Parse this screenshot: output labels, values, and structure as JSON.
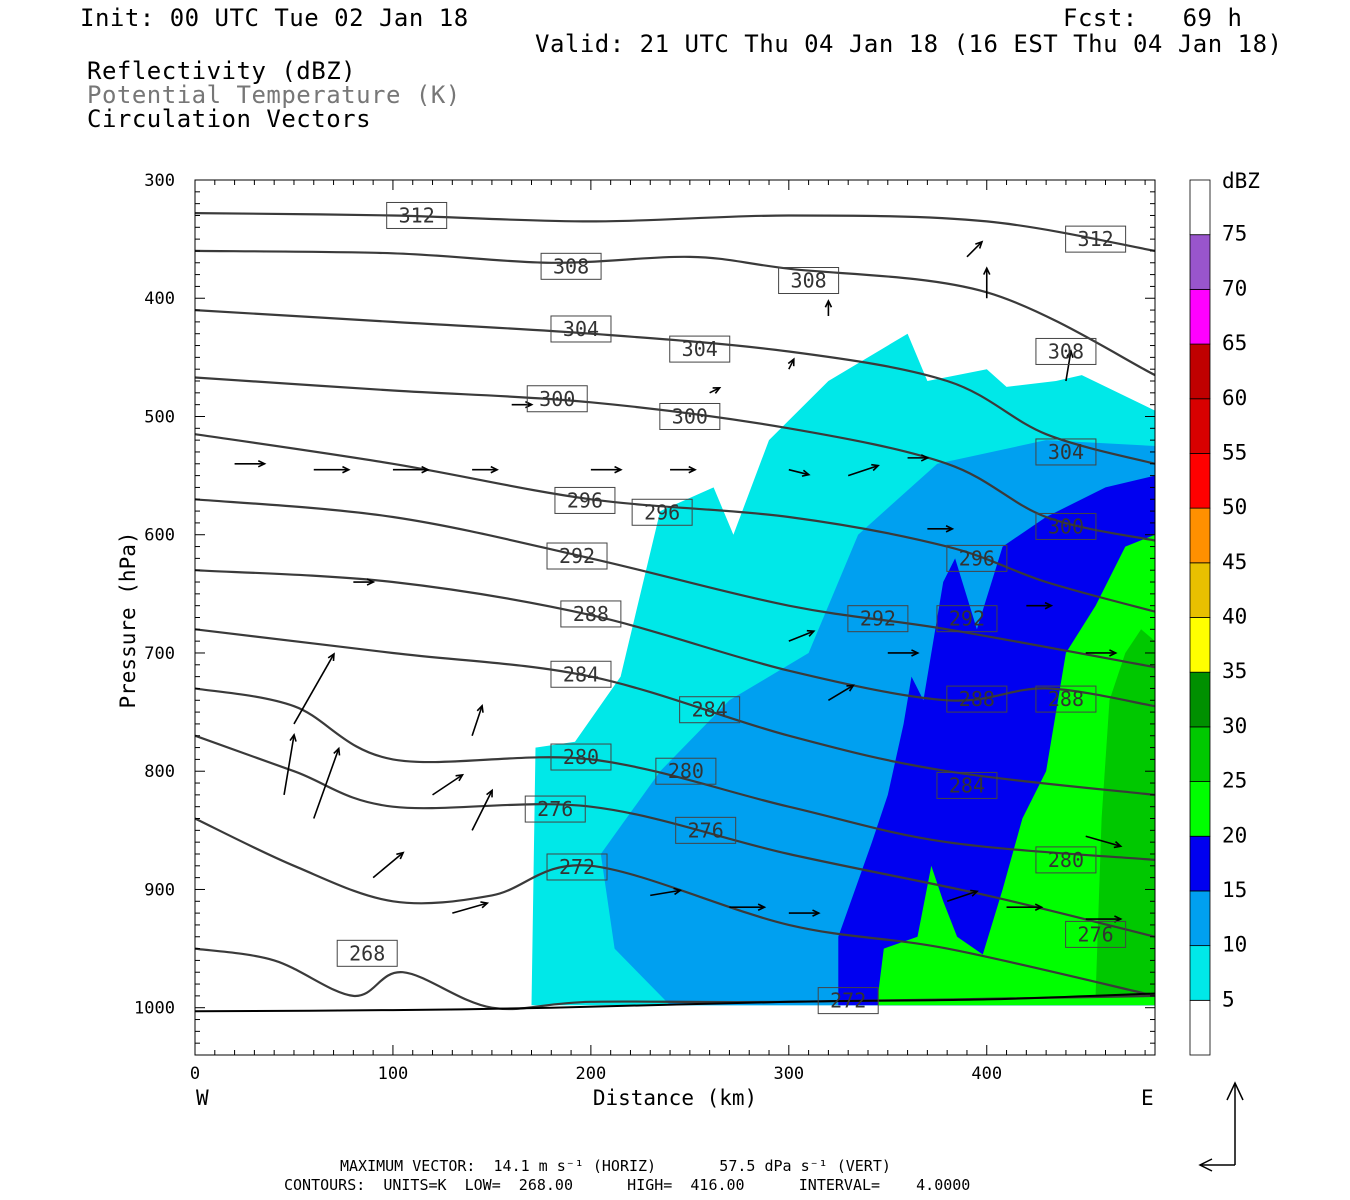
{
  "header": {
    "init": "Init: 00 UTC Tue 02 Jan 18",
    "fcst": "Fcst:   69 h",
    "valid": "Valid: 21 UTC Thu 04 Jan 18 (16 EST Thu 04 Jan 18)",
    "legend": [
      {
        "text": "Reflectivity (dBZ)",
        "color": "#000000"
      },
      {
        "text": "Potential Temperature (K)",
        "color": "#777777"
      },
      {
        "text": "Circulation Vectors",
        "color": "#000000"
      }
    ]
  },
  "footer": {
    "line1": "MAXIMUM VECTOR:  14.1 m s⁻¹ (HORIZ)       57.5 dPa s⁻¹ (VERT)",
    "line2": "CONTOURS:  UNITS=K  LOW=  268.00      HIGH=  416.00      INTERVAL=    4.0000"
  },
  "chart_data": {
    "type": "cross-section (filled contour + contour lines + vectors)",
    "xlabel": "Distance (km)",
    "ylabel": "Pressure (hPa)",
    "xlim": [
      0,
      485
    ],
    "ylim": [
      1040,
      300
    ],
    "x_ticks": [
      "0",
      "100",
      "200",
      "300",
      "400"
    ],
    "y_ticks": [
      "300",
      "400",
      "500",
      "600",
      "700",
      "800",
      "900",
      "1000"
    ],
    "x_end_labels": {
      "left": "W",
      "right": "E"
    },
    "colorbar": {
      "title": "dBZ",
      "levels": [
        "5",
        "10",
        "15",
        "20",
        "25",
        "30",
        "35",
        "40",
        "45",
        "50",
        "55",
        "60",
        "65",
        "70",
        "75"
      ],
      "colors": [
        "#00e8e8",
        "#00a0f0",
        "#0000f0",
        "#00ff00",
        "#00c800",
        "#009000",
        "#ffff00",
        "#e8c000",
        "#ff9000",
        "#ff0000",
        "#d80000",
        "#c00000",
        "#ff00ff",
        "#9955cc",
        "#ffffff"
      ]
    },
    "reflectivity_regions": [
      {
        "dbz": 5,
        "outline": [
          [
            172,
            780
          ],
          [
            192,
            775
          ],
          [
            215,
            720
          ],
          [
            235,
            580
          ],
          [
            262,
            560
          ],
          [
            272,
            600
          ],
          [
            290,
            520
          ],
          [
            320,
            470
          ],
          [
            360,
            430
          ],
          [
            370,
            470
          ],
          [
            400,
            460
          ],
          [
            410,
            475
          ],
          [
            435,
            470
          ],
          [
            448,
            465
          ],
          [
            485,
            495
          ],
          [
            485,
            998
          ],
          [
            170,
            998
          ]
        ]
      },
      {
        "dbz": 10,
        "outline": [
          [
            205,
            870
          ],
          [
            235,
            800
          ],
          [
            270,
            740
          ],
          [
            310,
            700
          ],
          [
            335,
            600
          ],
          [
            375,
            540
          ],
          [
            430,
            520
          ],
          [
            485,
            525
          ],
          [
            485,
            998
          ],
          [
            240,
            998
          ],
          [
            212,
            950
          ]
        ]
      },
      {
        "dbz": 15,
        "outline": [
          [
            325,
            940
          ],
          [
            342,
            860
          ],
          [
            350,
            820
          ],
          [
            358,
            760
          ],
          [
            362,
            720
          ],
          [
            368,
            740
          ],
          [
            378,
            640
          ],
          [
            384,
            620
          ],
          [
            395,
            680
          ],
          [
            408,
            610
          ],
          [
            430,
            585
          ],
          [
            460,
            560
          ],
          [
            485,
            550
          ],
          [
            485,
            998
          ],
          [
            325,
            998
          ]
        ]
      },
      {
        "dbz": 20,
        "outline": [
          [
            345,
            990
          ],
          [
            348,
            950
          ],
          [
            365,
            940
          ],
          [
            372,
            880
          ],
          [
            378,
            910
          ],
          [
            385,
            940
          ],
          [
            398,
            955
          ],
          [
            408,
            900
          ],
          [
            418,
            840
          ],
          [
            430,
            800
          ],
          [
            440,
            700
          ],
          [
            455,
            660
          ],
          [
            470,
            610
          ],
          [
            485,
            600
          ],
          [
            485,
            998
          ],
          [
            345,
            998
          ]
        ]
      },
      {
        "dbz": 25,
        "outline": [
          [
            455,
            990
          ],
          [
            458,
            840
          ],
          [
            462,
            740
          ],
          [
            470,
            700
          ],
          [
            478,
            680
          ],
          [
            485,
            690
          ],
          [
            485,
            990
          ]
        ]
      }
    ],
    "theta_contours": [
      {
        "K": "312",
        "label_pos": [
          [
            112,
            330
          ],
          [
            455,
            350
          ]
        ],
        "points": [
          [
            0,
            328
          ],
          [
            100,
            330
          ],
          [
            200,
            335
          ],
          [
            300,
            330
          ],
          [
            400,
            335
          ],
          [
            485,
            360
          ]
        ]
      },
      {
        "K": "308",
        "label_pos": [
          [
            190,
            373
          ],
          [
            310,
            385
          ],
          [
            440,
            445
          ]
        ],
        "points": [
          [
            0,
            360
          ],
          [
            100,
            362
          ],
          [
            180,
            370
          ],
          [
            250,
            365
          ],
          [
            300,
            375
          ],
          [
            400,
            395
          ],
          [
            485,
            465
          ]
        ]
      },
      {
        "K": "304",
        "label_pos": [
          [
            195,
            426
          ],
          [
            255,
            443
          ],
          [
            440,
            530
          ]
        ],
        "points": [
          [
            0,
            410
          ],
          [
            100,
            420
          ],
          [
            200,
            430
          ],
          [
            300,
            445
          ],
          [
            380,
            470
          ],
          [
            430,
            515
          ],
          [
            485,
            540
          ]
        ]
      },
      {
        "K": "300",
        "label_pos": [
          [
            183,
            485
          ],
          [
            250,
            500
          ],
          [
            440,
            593
          ]
        ],
        "points": [
          [
            0,
            467
          ],
          [
            100,
            478
          ],
          [
            200,
            488
          ],
          [
            300,
            510
          ],
          [
            380,
            540
          ],
          [
            430,
            585
          ],
          [
            485,
            605
          ]
        ]
      },
      {
        "K": "296",
        "label_pos": [
          [
            197,
            571
          ],
          [
            236,
            581
          ],
          [
            395,
            620
          ]
        ],
        "points": [
          [
            0,
            515
          ],
          [
            100,
            540
          ],
          [
            200,
            570
          ],
          [
            300,
            585
          ],
          [
            380,
            610
          ],
          [
            430,
            640
          ],
          [
            485,
            665
          ]
        ]
      },
      {
        "K": "292",
        "label_pos": [
          [
            193,
            618
          ],
          [
            345,
            671
          ],
          [
            390,
            671
          ]
        ],
        "points": [
          [
            0,
            570
          ],
          [
            100,
            585
          ],
          [
            200,
            620
          ],
          [
            300,
            660
          ],
          [
            380,
            680
          ],
          [
            485,
            712
          ]
        ]
      },
      {
        "K": "288",
        "label_pos": [
          [
            200,
            667
          ],
          [
            395,
            739
          ],
          [
            440,
            739
          ]
        ],
        "points": [
          [
            0,
            630
          ],
          [
            100,
            640
          ],
          [
            200,
            668
          ],
          [
            300,
            715
          ],
          [
            380,
            740
          ],
          [
            430,
            730
          ],
          [
            485,
            745
          ]
        ]
      },
      {
        "K": "284",
        "label_pos": [
          [
            195,
            718
          ],
          [
            260,
            748
          ],
          [
            390,
            812
          ]
        ],
        "points": [
          [
            0,
            680
          ],
          [
            100,
            700
          ],
          [
            200,
            720
          ],
          [
            300,
            770
          ],
          [
            380,
            800
          ],
          [
            485,
            820
          ]
        ]
      },
      {
        "K": "280",
        "label_pos": [
          [
            195,
            788
          ],
          [
            248,
            800
          ],
          [
            440,
            875
          ]
        ],
        "points": [
          [
            0,
            730
          ],
          [
            50,
            745
          ],
          [
            100,
            790
          ],
          [
            200,
            790
          ],
          [
            300,
            830
          ],
          [
            380,
            860
          ],
          [
            485,
            875
          ]
        ]
      },
      {
        "K": "276",
        "label_pos": [
          [
            182,
            832
          ],
          [
            258,
            850
          ],
          [
            455,
            938
          ]
        ],
        "points": [
          [
            0,
            770
          ],
          [
            50,
            800
          ],
          [
            100,
            830
          ],
          [
            200,
            830
          ],
          [
            300,
            870
          ],
          [
            400,
            905
          ],
          [
            485,
            940
          ]
        ]
      },
      {
        "K": "272",
        "label_pos": [
          [
            193,
            881
          ],
          [
            330,
            994
          ]
        ],
        "points": [
          [
            0,
            840
          ],
          [
            50,
            880
          ],
          [
            100,
            910
          ],
          [
            150,
            905
          ],
          [
            200,
            880
          ],
          [
            300,
            930
          ],
          [
            380,
            950
          ],
          [
            485,
            990
          ]
        ]
      },
      {
        "K": "268",
        "label_pos": [
          [
            87,
            954
          ]
        ],
        "points": [
          [
            0,
            950
          ],
          [
            40,
            960
          ],
          [
            80,
            990
          ],
          [
            105,
            970
          ],
          [
            150,
            1000
          ],
          [
            200,
            995
          ],
          [
            300,
            995
          ],
          [
            485,
            990
          ]
        ]
      }
    ],
    "vectors": [
      [
        50,
        760,
        40,
        -70
      ],
      [
        60,
        840,
        25,
        -70
      ],
      [
        45,
        820,
        10,
        -60
      ],
      [
        120,
        820,
        30,
        -20
      ],
      [
        140,
        850,
        20,
        -40
      ],
      [
        140,
        770,
        10,
        -30
      ],
      [
        90,
        890,
        30,
        -25
      ],
      [
        130,
        920,
        35,
        -10
      ],
      [
        20,
        540,
        30,
        0
      ],
      [
        60,
        545,
        35,
        0
      ],
      [
        100,
        545,
        35,
        0
      ],
      [
        200,
        545,
        30,
        0
      ],
      [
        240,
        545,
        25,
        0
      ],
      [
        300,
        545,
        20,
        5
      ],
      [
        330,
        550,
        30,
        -10
      ],
      [
        360,
        535,
        20,
        0
      ],
      [
        230,
        905,
        30,
        -5
      ],
      [
        270,
        915,
        35,
        0
      ],
      [
        300,
        920,
        30,
        0
      ],
      [
        380,
        910,
        30,
        -10
      ],
      [
        410,
        915,
        35,
        0
      ],
      [
        450,
        925,
        35,
        0
      ],
      [
        450,
        855,
        35,
        10
      ],
      [
        300,
        690,
        25,
        -10
      ],
      [
        320,
        740,
        25,
        -15
      ],
      [
        350,
        700,
        30,
        0
      ],
      [
        370,
        595,
        25,
        0
      ],
      [
        420,
        660,
        25,
        0
      ],
      [
        450,
        700,
        30,
        0
      ],
      [
        400,
        400,
        0,
        -30
      ],
      [
        440,
        470,
        5,
        -30
      ],
      [
        390,
        365,
        15,
        -15
      ],
      [
        320,
        415,
        0,
        -15
      ],
      [
        300,
        460,
        5,
        -10
      ],
      [
        260,
        480,
        10,
        -5
      ],
      [
        160,
        490,
        20,
        0
      ],
      [
        140,
        545,
        25,
        0
      ],
      [
        80,
        640,
        20,
        0
      ]
    ]
  }
}
